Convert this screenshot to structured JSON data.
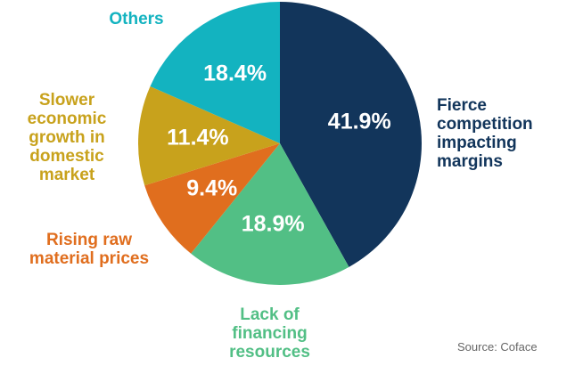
{
  "chart_data": {
    "type": "pie",
    "categories": [
      "Fierce competition impacting margins",
      "Lack of financing resources",
      "Rising raw material prices",
      "Slower economic growth in domestic market",
      "Others"
    ],
    "values": [
      41.9,
      18.9,
      9.4,
      11.4,
      18.4
    ],
    "value_labels": [
      "41.9%",
      "18.9%",
      "9.4%",
      "11.4%",
      "18.4%"
    ],
    "colors": [
      "#12355b",
      "#52bf85",
      "#e06e1e",
      "#c8a21c",
      "#13b3c0"
    ],
    "source": "Source: Coface"
  }
}
